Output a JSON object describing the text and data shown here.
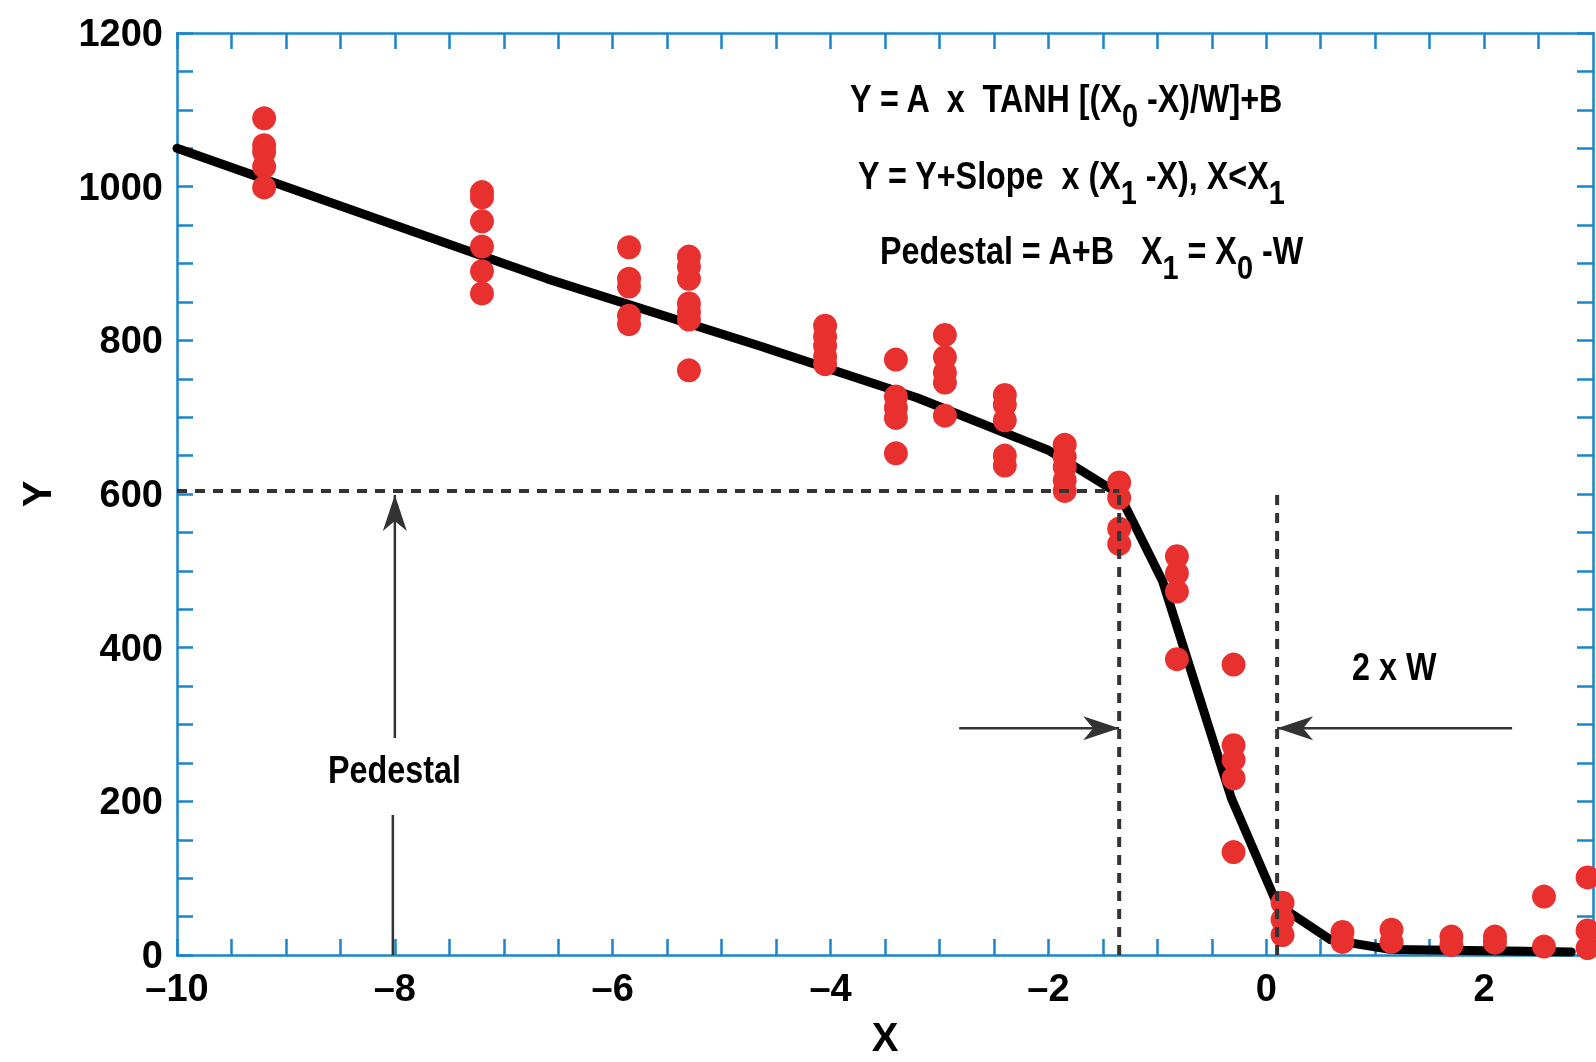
{
  "chart_data": {
    "type": "scatter",
    "xlabel": "X",
    "ylabel": "Y",
    "xlim": [
      -10,
      3
    ],
    "ylim": [
      0,
      1200
    ],
    "xticks": [
      {
        "value": -10,
        "label": "–10"
      },
      {
        "value": -9.5,
        "label": null
      },
      {
        "value": -9,
        "label": null
      },
      {
        "value": -8.5,
        "label": null
      },
      {
        "value": -8,
        "label": "–8"
      },
      {
        "value": -7.5,
        "label": null
      },
      {
        "value": -7,
        "label": null
      },
      {
        "value": -6.5,
        "label": null
      },
      {
        "value": -6,
        "label": "–6"
      },
      {
        "value": -5.5,
        "label": null
      },
      {
        "value": -5,
        "label": null
      },
      {
        "value": -4.5,
        "label": null
      },
      {
        "value": -4,
        "label": "–4"
      },
      {
        "value": -3.5,
        "label": null
      },
      {
        "value": -3,
        "label": null
      },
      {
        "value": -2.5,
        "label": null
      },
      {
        "value": -2,
        "label": "–2"
      },
      {
        "value": -1.5,
        "label": null
      },
      {
        "value": -1,
        "label": null
      },
      {
        "value": -0.5,
        "label": null
      },
      0,
      {
        "value": 0.5,
        "label": null
      },
      {
        "value": 1,
        "label": null
      },
      {
        "value": 1.5,
        "label": null
      },
      2,
      {
        "value": 2.5,
        "label": null
      }
    ],
    "yticks": [
      0,
      {
        "value": 50,
        "label": null
      },
      {
        "value": 100,
        "label": null
      },
      {
        "value": 150,
        "label": null
      },
      200,
      {
        "value": 250,
        "label": null
      },
      {
        "value": 300,
        "label": null
      },
      {
        "value": 350,
        "label": null
      },
      400,
      {
        "value": 450,
        "label": null
      },
      {
        "value": 500,
        "label": null
      },
      {
        "value": 550,
        "label": null
      },
      600,
      {
        "value": 650,
        "label": null
      },
      {
        "value": 700,
        "label": null
      },
      {
        "value": 750,
        "label": null
      },
      800,
      {
        "value": 850,
        "label": null
      },
      {
        "value": 900,
        "label": null
      },
      {
        "value": 950,
        "label": null
      },
      1000,
      {
        "value": 1050,
        "label": null
      },
      {
        "value": 1100,
        "label": null
      },
      {
        "value": 1150,
        "label": null
      },
      1200
    ],
    "grid": false,
    "marker": "circle",
    "series": [
      {
        "color": "#e8302f",
        "x": [
          -9.2,
          -9.2,
          -9.2,
          -9.2,
          -9.2,
          -7.2,
          -7.2,
          -7.2,
          -7.2,
          -7.2,
          -7.2,
          -5.85,
          -5.85,
          -5.85,
          -5.85,
          -5.85,
          -5.3,
          -5.3,
          -5.3,
          -5.3,
          -5.3,
          -5.3,
          -5.3,
          -4.05,
          -4.05,
          -4.05,
          -4.05,
          -4.05,
          -3.4,
          -3.4,
          -3.4,
          -3.4,
          -3.4,
          -2.95,
          -2.95,
          -2.95,
          -2.95,
          -2.95,
          -2.4,
          -2.4,
          -2.4,
          -2.4,
          -2.4,
          -1.85,
          -1.85,
          -1.85,
          -1.85,
          -1.85,
          -1.35,
          -1.35,
          -1.35,
          -1.35,
          -0.82,
          -0.82,
          -0.82,
          -0.82,
          -0.3,
          -0.3,
          -0.3,
          -0.3,
          -0.3,
          0.15,
          0.15,
          0.15,
          0.7,
          0.7,
          1.15,
          1.15,
          1.7,
          1.7,
          2.1,
          2.1,
          2.55,
          2.55,
          2.95,
          2.95,
          2.95
        ],
        "values": [
          1089,
          1054,
          1045,
          1026,
          999,
          993,
          986,
          955,
          922,
          890,
          861,
          921,
          880,
          870,
          832,
          821,
          909,
          896,
          880,
          848,
          837,
          827,
          761,
          819,
          805,
          793,
          779,
          769,
          775,
          727,
          712,
          699,
          653,
          807,
          778,
          758,
          745,
          702,
          729,
          716,
          696,
          650,
          637,
          664,
          648,
          635,
          618,
          604,
          615,
          595,
          555,
          535,
          519,
          497,
          473,
          385,
          378,
          273,
          254,
          230,
          134,
          68,
          46,
          26,
          30,
          17,
          33,
          17,
          24,
          13,
          24,
          16,
          76,
          11,
          101,
          32,
          9
        ]
      },
      {
        "type": "line",
        "color": "#000000",
        "marker": "none",
        "line_style": "solid",
        "x": [
          -10,
          -6.6,
          -4.7,
          -3.2,
          -2,
          -1.35,
          -0.95,
          -0.32,
          0.1,
          0.59,
          1.15,
          2.8
        ],
        "values": [
          1050,
          880,
          795,
          725,
          657,
          600,
          486,
          204,
          66,
          20,
          7,
          4
        ]
      }
    ],
    "ref_lines": [
      {
        "axis": "y",
        "value": 604,
        "color": "#333333",
        "line_style": "dashed"
      },
      {
        "axis": "x",
        "value": -1.35,
        "color": "#333333",
        "line_style": "dashed"
      },
      {
        "axis": "x",
        "value": 0.1,
        "color": "#333333",
        "line_style": "dashed"
      }
    ],
    "annotations": [
      "Y = A  x  TANH [(X$_{0}$ -X)/W]+B",
      "Y = Y+Slope  x (X$_{1}$ -X), X<X$_{1}$",
      "Pedestal = A+B   X$_{1}$ = X$_{0}$ -W",
      {
        "text": "Pedestal",
        "x": -8,
        "y": 604
      },
      {
        "text": "2 x W",
        "x": 0.1,
        "y": 295
      }
    ]
  }
}
